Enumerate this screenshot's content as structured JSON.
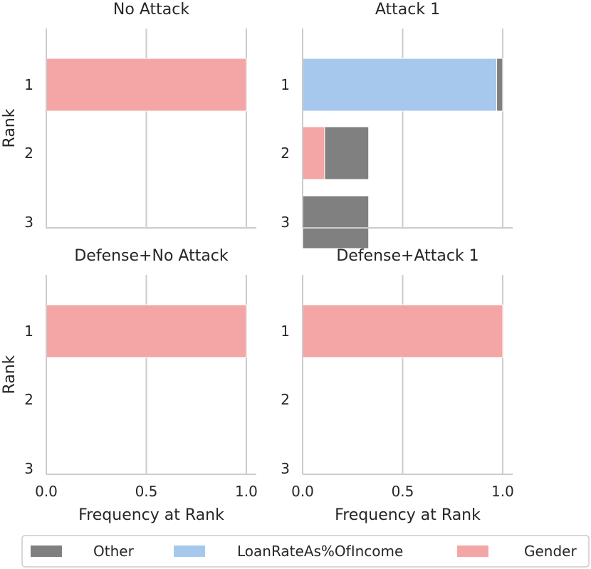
{
  "chart_data": {
    "type": "bar",
    "orientation": "horizontal",
    "stacked": true,
    "xlabel": "Frequency at Rank",
    "ylabel": "Rank",
    "xlim": [
      0,
      1.05
    ],
    "x_ticks": [
      0.0,
      0.5,
      1.0
    ],
    "x_tick_labels": [
      "0.0",
      "0.5",
      "1.0"
    ],
    "categories": [
      "1",
      "2",
      "3"
    ],
    "grid": "vertical",
    "legend": {
      "placement": "bottom",
      "entries": [
        {
          "name": "Other",
          "color": "#808080"
        },
        {
          "name": "LoanRateAs%OfIncome",
          "color": "#a6c8ec"
        },
        {
          "name": "Gender",
          "color": "#f4a6a6"
        }
      ]
    },
    "panels": [
      {
        "title": "No Attack",
        "series": [
          {
            "name": "Gender",
            "values": [
              1.0,
              0,
              0
            ]
          },
          {
            "name": "LoanRateAs%OfIncome",
            "values": [
              0,
              0,
              0
            ]
          },
          {
            "name": "Other",
            "values": [
              0,
              0,
              0
            ]
          }
        ]
      },
      {
        "title": "Attack 1",
        "series": [
          {
            "name": "Gender",
            "values": [
              0,
              0.11,
              0
            ]
          },
          {
            "name": "LoanRateAs%OfIncome",
            "values": [
              0.97,
              0,
              0
            ]
          },
          {
            "name": "Other",
            "values": [
              0.03,
              0.22,
              0.33
            ]
          }
        ]
      },
      {
        "title": "Defense+No Attack",
        "series": [
          {
            "name": "Gender",
            "values": [
              1.0,
              0,
              0
            ]
          },
          {
            "name": "LoanRateAs%OfIncome",
            "values": [
              0,
              0,
              0
            ]
          },
          {
            "name": "Other",
            "values": [
              0,
              0,
              0
            ]
          }
        ]
      },
      {
        "title": "Defense+Attack 1",
        "series": [
          {
            "name": "Gender",
            "values": [
              1.0,
              0,
              0
            ]
          },
          {
            "name": "LoanRateAs%OfIncome",
            "values": [
              0,
              0,
              0
            ]
          },
          {
            "name": "Other",
            "values": [
              0,
              0,
              0
            ]
          }
        ]
      }
    ]
  }
}
